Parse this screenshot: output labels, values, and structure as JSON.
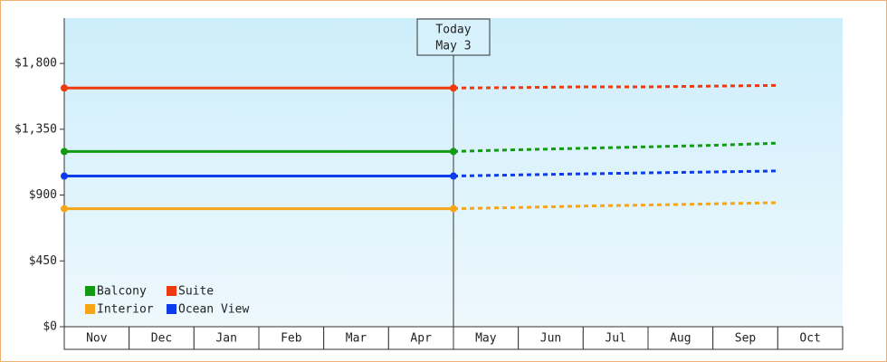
{
  "chart_data": {
    "type": "line",
    "annotation": [
      "Today",
      "May 3"
    ],
    "categories": [
      "Nov",
      "Dec",
      "Jan",
      "Feb",
      "Mar",
      "Apr",
      "May",
      "Jun",
      "Jul",
      "Aug",
      "Sep",
      "Oct"
    ],
    "ylim": [
      0,
      2110
    ],
    "yticks": [
      {
        "value": 0,
        "label": "$0"
      },
      {
        "value": 450,
        "label": "$450"
      },
      {
        "value": 900,
        "label": "$900"
      },
      {
        "value": 1350,
        "label": "$1,350"
      },
      {
        "value": 1800,
        "label": "$1,800"
      }
    ],
    "legend": "lower left",
    "series": [
      {
        "name": "Balcony",
        "color": "#129b12",
        "values": [
          1198,
          1198,
          1198,
          1198,
          1198,
          1198,
          1198,
          null,
          null,
          null,
          null,
          null
        ],
        "forecast": [
          null,
          null,
          null,
          null,
          null,
          null,
          1198,
          1210,
          1220,
          1230,
          1240,
          1255
        ]
      },
      {
        "name": "Suite",
        "color": "#ee3a0e",
        "values": [
          1632,
          1632,
          1632,
          1632,
          1632,
          1632,
          1632,
          null,
          null,
          null,
          null,
          null
        ],
        "forecast": [
          null,
          null,
          null,
          null,
          null,
          null,
          1632,
          1635,
          1640,
          1640,
          1645,
          1650
        ]
      },
      {
        "name": "Interior",
        "color": "#f5a516",
        "values": [
          807,
          807,
          807,
          807,
          807,
          807,
          807,
          null,
          null,
          null,
          null,
          null
        ],
        "forecast": [
          null,
          null,
          null,
          null,
          null,
          null,
          807,
          815,
          825,
          832,
          840,
          848
        ]
      },
      {
        "name": "Ocean View",
        "color": "#0c3bee",
        "values": [
          1030,
          1030,
          1030,
          1030,
          1030,
          1030,
          1030,
          null,
          null,
          null,
          null,
          null
        ],
        "forecast": [
          null,
          null,
          null,
          null,
          null,
          null,
          1030,
          1038,
          1045,
          1052,
          1058,
          1065
        ]
      }
    ]
  }
}
